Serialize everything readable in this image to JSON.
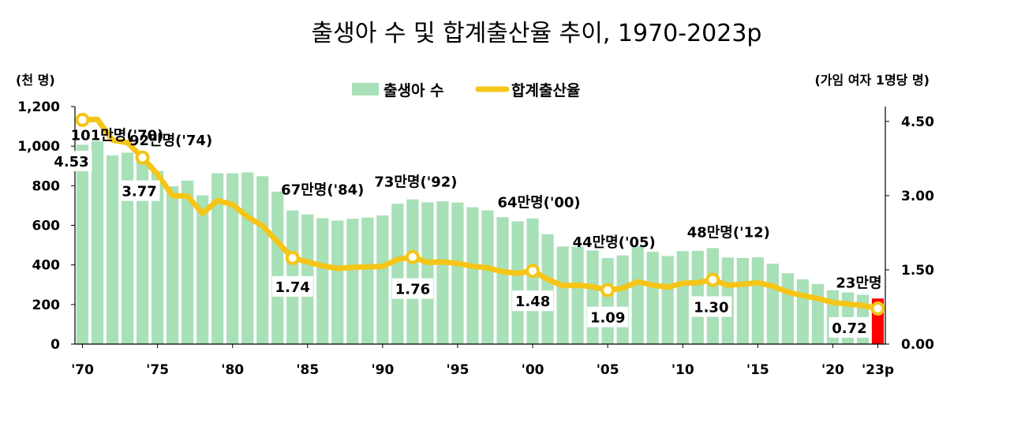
{
  "chart_data": {
    "type": "bar+line",
    "title": "출생아 수 및 합계출산율 추이, 1970-2023p",
    "left_axis_unit": "(천 명)",
    "right_axis_unit": "(가임 여자 1명당 명)",
    "left_ticks": [
      "0",
      "200",
      "400",
      "600",
      "800",
      "1,000",
      "1,200"
    ],
    "right_ticks": [
      "0.00",
      "1.50",
      "3.00",
      "4.50"
    ],
    "ylim_left": [
      0,
      1200
    ],
    "ylim_right": [
      0,
      4.8
    ],
    "x_tick_labels": [
      "'70",
      "'75",
      "'80",
      "'85",
      "'90",
      "'95",
      "'00",
      "'05",
      "'10",
      "'15",
      "'20",
      "'23p"
    ],
    "years": [
      1970,
      1971,
      1972,
      1973,
      1974,
      1975,
      1976,
      1977,
      1978,
      1979,
      1980,
      1981,
      1982,
      1983,
      1984,
      1985,
      1986,
      1987,
      1988,
      1989,
      1990,
      1991,
      1992,
      1993,
      1994,
      1995,
      1996,
      1997,
      1998,
      1999,
      2000,
      2001,
      2002,
      2003,
      2004,
      2005,
      2006,
      2007,
      2008,
      2009,
      2010,
      2011,
      2012,
      2013,
      2014,
      2015,
      2016,
      2017,
      2018,
      2019,
      2020,
      2021,
      2022,
      2023
    ],
    "series": [
      {
        "name": "출생아 수",
        "type": "bar",
        "axis": "left",
        "color": "#a8e0b8",
        "values": [
          1007,
          1025,
          953,
          967,
          924,
          875,
          797,
          826,
          751,
          863,
          863,
          867,
          848,
          770,
          675,
          655,
          636,
          624,
          633,
          639,
          650,
          709,
          731,
          716,
          721,
          715,
          691,
          675,
          641,
          620,
          635,
          555,
          493,
          491,
          473,
          435,
          448,
          494,
          466,
          445,
          470,
          471,
          485,
          437,
          435,
          438,
          406,
          358,
          327,
          303,
          272,
          261,
          249,
          230
        ]
      },
      {
        "name": "합계출산율",
        "type": "line",
        "axis": "right",
        "color": "#f5c518",
        "values": [
          4.53,
          4.54,
          4.12,
          4.07,
          3.77,
          3.43,
          3.0,
          2.99,
          2.64,
          2.9,
          2.82,
          2.57,
          2.39,
          2.06,
          1.74,
          1.66,
          1.58,
          1.53,
          1.55,
          1.56,
          1.57,
          1.71,
          1.76,
          1.65,
          1.66,
          1.63,
          1.57,
          1.54,
          1.46,
          1.43,
          1.48,
          1.31,
          1.18,
          1.19,
          1.16,
          1.09,
          1.13,
          1.26,
          1.19,
          1.15,
          1.23,
          1.24,
          1.3,
          1.19,
          1.21,
          1.24,
          1.17,
          1.05,
          0.98,
          0.92,
          0.84,
          0.81,
          0.78,
          0.72
        ]
      }
    ],
    "highlight_last_bar_color": "#ff0000",
    "tfr_markers": [
      {
        "year": 1970,
        "label": "4.53"
      },
      {
        "year": 1974,
        "label": "3.77"
      },
      {
        "year": 1984,
        "label": "1.74"
      },
      {
        "year": 1992,
        "label": "1.76"
      },
      {
        "year": 2000,
        "label": "1.48"
      },
      {
        "year": 2005,
        "label": "1.09"
      },
      {
        "year": 2012,
        "label": "1.30"
      },
      {
        "year": 2023,
        "label": "0.72"
      }
    ],
    "birth_annotations": [
      {
        "year": 1970,
        "text": "101만명('70)"
      },
      {
        "year": 1974,
        "text": "92만명('74)"
      },
      {
        "year": 1984,
        "text": "67만명('84)"
      },
      {
        "year": 1992,
        "text": "73만명('92)"
      },
      {
        "year": 2000,
        "text": "64만명('00)"
      },
      {
        "year": 2005,
        "text": "44만명('05)"
      },
      {
        "year": 2012,
        "text": "48만명('12)"
      },
      {
        "year": 2023,
        "text": "23만명"
      }
    ],
    "legend": [
      "출생아 수",
      "합계출산율"
    ],
    "legend_position": "top-center",
    "grid": false
  }
}
